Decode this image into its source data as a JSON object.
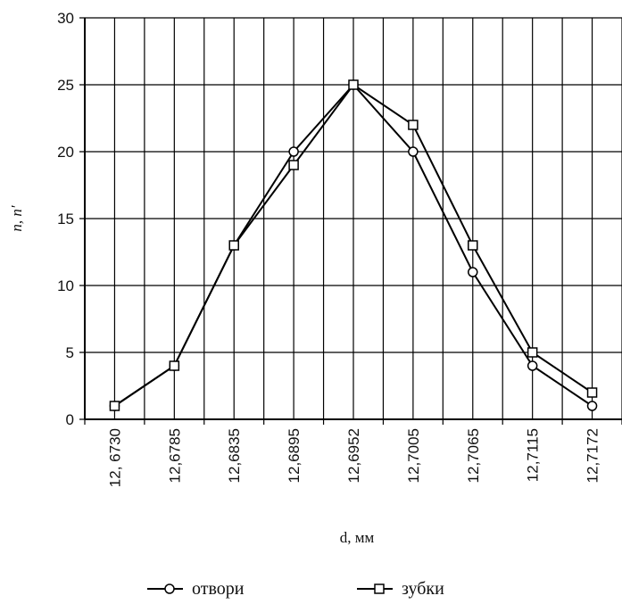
{
  "chart_data": {
    "type": "line",
    "x_label": "d, мм",
    "y_label": "n, n′",
    "categories": [
      "12, 6730",
      "12,6785",
      "12,6835",
      "12,6895",
      "12,6952",
      "12,7005",
      "12,7065",
      "12,7115",
      "12,7172"
    ],
    "series": [
      {
        "name": "отвори",
        "color": "#000000",
        "marker": "circle",
        "values": [
          1,
          4,
          13,
          20,
          25,
          20,
          11,
          4,
          1
        ]
      },
      {
        "name": "зубки",
        "color": "#000000",
        "marker": "square",
        "values": [
          1,
          4,
          13,
          19,
          25,
          22,
          13,
          5,
          2
        ]
      }
    ],
    "ylim": [
      0,
      30
    ],
    "yticks": [
      0,
      5,
      10,
      15,
      20,
      25,
      30
    ],
    "grid": true
  }
}
